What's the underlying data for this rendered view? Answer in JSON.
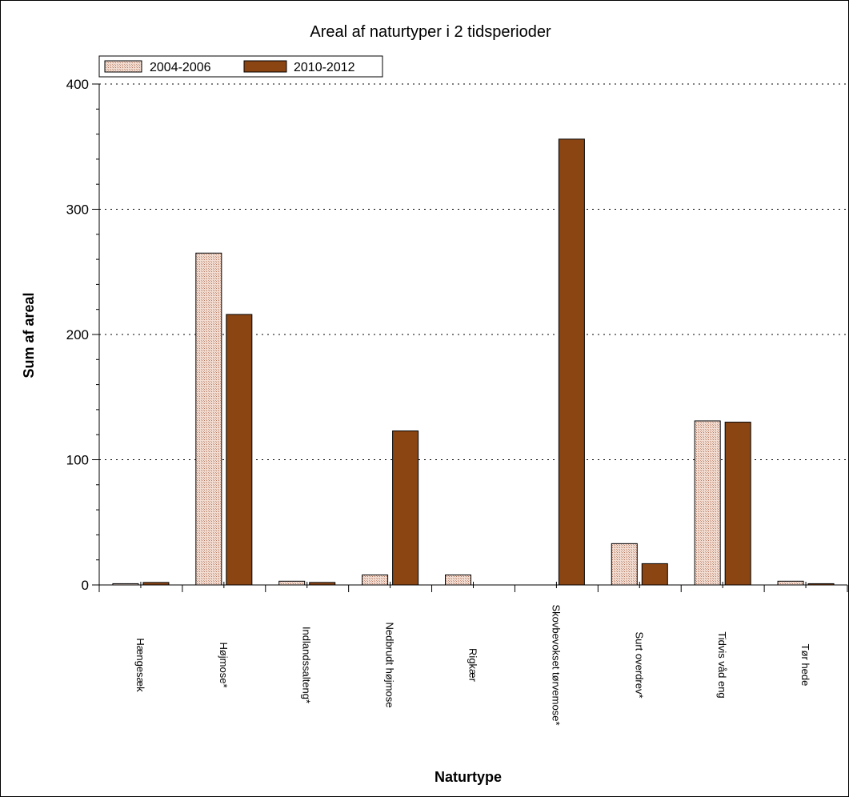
{
  "chart_data": {
    "type": "bar",
    "title": "Areal af naturtyper i 2 tidsperioder",
    "xlabel": "Naturtype",
    "ylabel": "Sum af areal",
    "ylim": [
      0,
      400
    ],
    "yticks": [
      0,
      100,
      200,
      300,
      400
    ],
    "grid": true,
    "legend_position": "top-left",
    "categories": [
      "Hængesæk",
      "Højmose*",
      "Indlandssalteng*",
      "Nedbrudt højmose",
      "Rigkær",
      "Skovbevokset tørvemose*",
      "Surt overdrev*",
      "Tidvis våd eng",
      "Tør hede"
    ],
    "series": [
      {
        "name": "2004-2006",
        "color": "#e6c3b3",
        "pattern": "dotted",
        "values": [
          1,
          265,
          3,
          8,
          8,
          0,
          33,
          131,
          3
        ]
      },
      {
        "name": "2010-2012",
        "color": "#8b4513",
        "values": [
          2,
          216,
          2,
          123,
          0,
          356,
          17,
          130,
          1
        ]
      }
    ]
  }
}
